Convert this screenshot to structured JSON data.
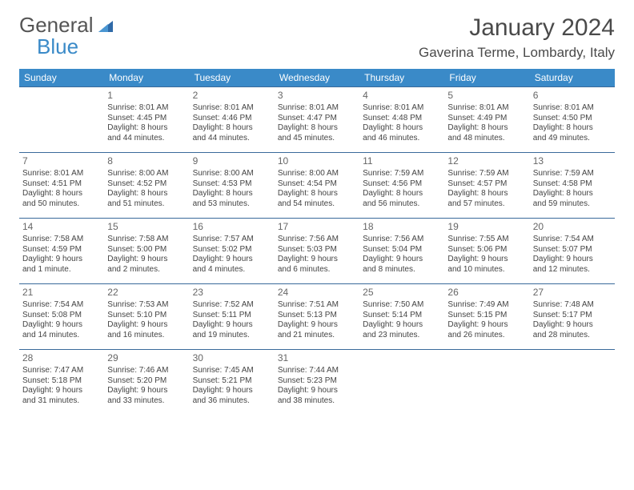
{
  "logo": {
    "general": "General",
    "blue": "Blue"
  },
  "title": "January 2024",
  "location": "Gaverina Terme, Lombardy, Italy",
  "colors": {
    "header_bg": "#3a8ac8",
    "header_text": "#ffffff",
    "rule": "#3a6a9a",
    "body_text": "#444444",
    "daynum": "#666666",
    "title_text": "#4a4a4a"
  },
  "day_names": [
    "Sunday",
    "Monday",
    "Tuesday",
    "Wednesday",
    "Thursday",
    "Friday",
    "Saturday"
  ],
  "weeks": [
    [
      null,
      {
        "n": "1",
        "sr": "Sunrise: 8:01 AM",
        "ss": "Sunset: 4:45 PM",
        "d1": "Daylight: 8 hours",
        "d2": "and 44 minutes."
      },
      {
        "n": "2",
        "sr": "Sunrise: 8:01 AM",
        "ss": "Sunset: 4:46 PM",
        "d1": "Daylight: 8 hours",
        "d2": "and 44 minutes."
      },
      {
        "n": "3",
        "sr": "Sunrise: 8:01 AM",
        "ss": "Sunset: 4:47 PM",
        "d1": "Daylight: 8 hours",
        "d2": "and 45 minutes."
      },
      {
        "n": "4",
        "sr": "Sunrise: 8:01 AM",
        "ss": "Sunset: 4:48 PM",
        "d1": "Daylight: 8 hours",
        "d2": "and 46 minutes."
      },
      {
        "n": "5",
        "sr": "Sunrise: 8:01 AM",
        "ss": "Sunset: 4:49 PM",
        "d1": "Daylight: 8 hours",
        "d2": "and 48 minutes."
      },
      {
        "n": "6",
        "sr": "Sunrise: 8:01 AM",
        "ss": "Sunset: 4:50 PM",
        "d1": "Daylight: 8 hours",
        "d2": "and 49 minutes."
      }
    ],
    [
      {
        "n": "7",
        "sr": "Sunrise: 8:01 AM",
        "ss": "Sunset: 4:51 PM",
        "d1": "Daylight: 8 hours",
        "d2": "and 50 minutes."
      },
      {
        "n": "8",
        "sr": "Sunrise: 8:00 AM",
        "ss": "Sunset: 4:52 PM",
        "d1": "Daylight: 8 hours",
        "d2": "and 51 minutes."
      },
      {
        "n": "9",
        "sr": "Sunrise: 8:00 AM",
        "ss": "Sunset: 4:53 PM",
        "d1": "Daylight: 8 hours",
        "d2": "and 53 minutes."
      },
      {
        "n": "10",
        "sr": "Sunrise: 8:00 AM",
        "ss": "Sunset: 4:54 PM",
        "d1": "Daylight: 8 hours",
        "d2": "and 54 minutes."
      },
      {
        "n": "11",
        "sr": "Sunrise: 7:59 AM",
        "ss": "Sunset: 4:56 PM",
        "d1": "Daylight: 8 hours",
        "d2": "and 56 minutes."
      },
      {
        "n": "12",
        "sr": "Sunrise: 7:59 AM",
        "ss": "Sunset: 4:57 PM",
        "d1": "Daylight: 8 hours",
        "d2": "and 57 minutes."
      },
      {
        "n": "13",
        "sr": "Sunrise: 7:59 AM",
        "ss": "Sunset: 4:58 PM",
        "d1": "Daylight: 8 hours",
        "d2": "and 59 minutes."
      }
    ],
    [
      {
        "n": "14",
        "sr": "Sunrise: 7:58 AM",
        "ss": "Sunset: 4:59 PM",
        "d1": "Daylight: 9 hours",
        "d2": "and 1 minute."
      },
      {
        "n": "15",
        "sr": "Sunrise: 7:58 AM",
        "ss": "Sunset: 5:00 PM",
        "d1": "Daylight: 9 hours",
        "d2": "and 2 minutes."
      },
      {
        "n": "16",
        "sr": "Sunrise: 7:57 AM",
        "ss": "Sunset: 5:02 PM",
        "d1": "Daylight: 9 hours",
        "d2": "and 4 minutes."
      },
      {
        "n": "17",
        "sr": "Sunrise: 7:56 AM",
        "ss": "Sunset: 5:03 PM",
        "d1": "Daylight: 9 hours",
        "d2": "and 6 minutes."
      },
      {
        "n": "18",
        "sr": "Sunrise: 7:56 AM",
        "ss": "Sunset: 5:04 PM",
        "d1": "Daylight: 9 hours",
        "d2": "and 8 minutes."
      },
      {
        "n": "19",
        "sr": "Sunrise: 7:55 AM",
        "ss": "Sunset: 5:06 PM",
        "d1": "Daylight: 9 hours",
        "d2": "and 10 minutes."
      },
      {
        "n": "20",
        "sr": "Sunrise: 7:54 AM",
        "ss": "Sunset: 5:07 PM",
        "d1": "Daylight: 9 hours",
        "d2": "and 12 minutes."
      }
    ],
    [
      {
        "n": "21",
        "sr": "Sunrise: 7:54 AM",
        "ss": "Sunset: 5:08 PM",
        "d1": "Daylight: 9 hours",
        "d2": "and 14 minutes."
      },
      {
        "n": "22",
        "sr": "Sunrise: 7:53 AM",
        "ss": "Sunset: 5:10 PM",
        "d1": "Daylight: 9 hours",
        "d2": "and 16 minutes."
      },
      {
        "n": "23",
        "sr": "Sunrise: 7:52 AM",
        "ss": "Sunset: 5:11 PM",
        "d1": "Daylight: 9 hours",
        "d2": "and 19 minutes."
      },
      {
        "n": "24",
        "sr": "Sunrise: 7:51 AM",
        "ss": "Sunset: 5:13 PM",
        "d1": "Daylight: 9 hours",
        "d2": "and 21 minutes."
      },
      {
        "n": "25",
        "sr": "Sunrise: 7:50 AM",
        "ss": "Sunset: 5:14 PM",
        "d1": "Daylight: 9 hours",
        "d2": "and 23 minutes."
      },
      {
        "n": "26",
        "sr": "Sunrise: 7:49 AM",
        "ss": "Sunset: 5:15 PM",
        "d1": "Daylight: 9 hours",
        "d2": "and 26 minutes."
      },
      {
        "n": "27",
        "sr": "Sunrise: 7:48 AM",
        "ss": "Sunset: 5:17 PM",
        "d1": "Daylight: 9 hours",
        "d2": "and 28 minutes."
      }
    ],
    [
      {
        "n": "28",
        "sr": "Sunrise: 7:47 AM",
        "ss": "Sunset: 5:18 PM",
        "d1": "Daylight: 9 hours",
        "d2": "and 31 minutes."
      },
      {
        "n": "29",
        "sr": "Sunrise: 7:46 AM",
        "ss": "Sunset: 5:20 PM",
        "d1": "Daylight: 9 hours",
        "d2": "and 33 minutes."
      },
      {
        "n": "30",
        "sr": "Sunrise: 7:45 AM",
        "ss": "Sunset: 5:21 PM",
        "d1": "Daylight: 9 hours",
        "d2": "and 36 minutes."
      },
      {
        "n": "31",
        "sr": "Sunrise: 7:44 AM",
        "ss": "Sunset: 5:23 PM",
        "d1": "Daylight: 9 hours",
        "d2": "and 38 minutes."
      },
      null,
      null,
      null
    ]
  ]
}
